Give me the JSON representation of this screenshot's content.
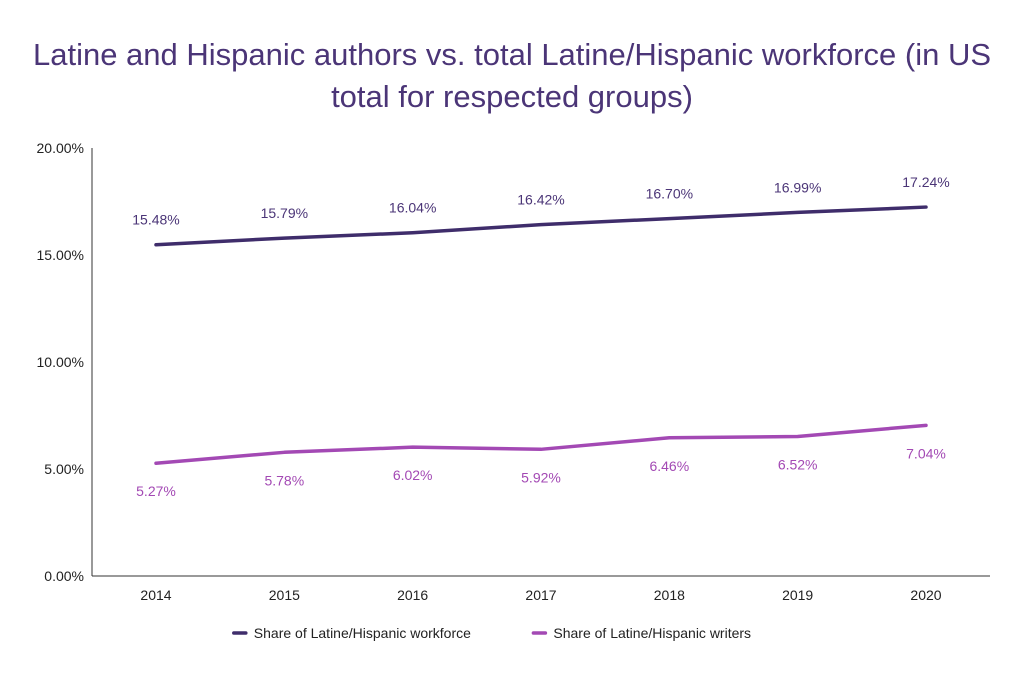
{
  "chart_data": {
    "type": "line",
    "title": "Latine and Hispanic authors vs. total Latine/Hispanic workforce (in US total for respected groups)",
    "categories": [
      "2014",
      "2015",
      "2016",
      "2017",
      "2018",
      "2019",
      "2020"
    ],
    "y_ticks": [
      "0.00%",
      "5.00%",
      "10.00%",
      "15.00%",
      "20.00%"
    ],
    "ylim": [
      0,
      20
    ],
    "grid": false,
    "legend_position": "bottom",
    "series": [
      {
        "name": "Share of Latine/Hispanic workforce",
        "color": "#3f2d6b",
        "label_color": "#4b3577",
        "values": [
          15.48,
          15.79,
          16.04,
          16.42,
          16.7,
          16.99,
          17.24
        ],
        "labels": [
          "15.48%",
          "15.79%",
          "16.04%",
          "16.42%",
          "16.70%",
          "16.99%",
          "17.24%"
        ],
        "label_side": "above"
      },
      {
        "name": "Share of Latine/Hispanic writers",
        "color": "#a349b4",
        "label_color": "#a349b4",
        "values": [
          5.27,
          5.78,
          6.02,
          5.92,
          6.46,
          6.52,
          7.04
        ],
        "labels": [
          "5.27%",
          "5.78%",
          "6.02%",
          "5.92%",
          "6.46%",
          "6.52%",
          "7.04%"
        ],
        "label_side": "below"
      }
    ]
  }
}
